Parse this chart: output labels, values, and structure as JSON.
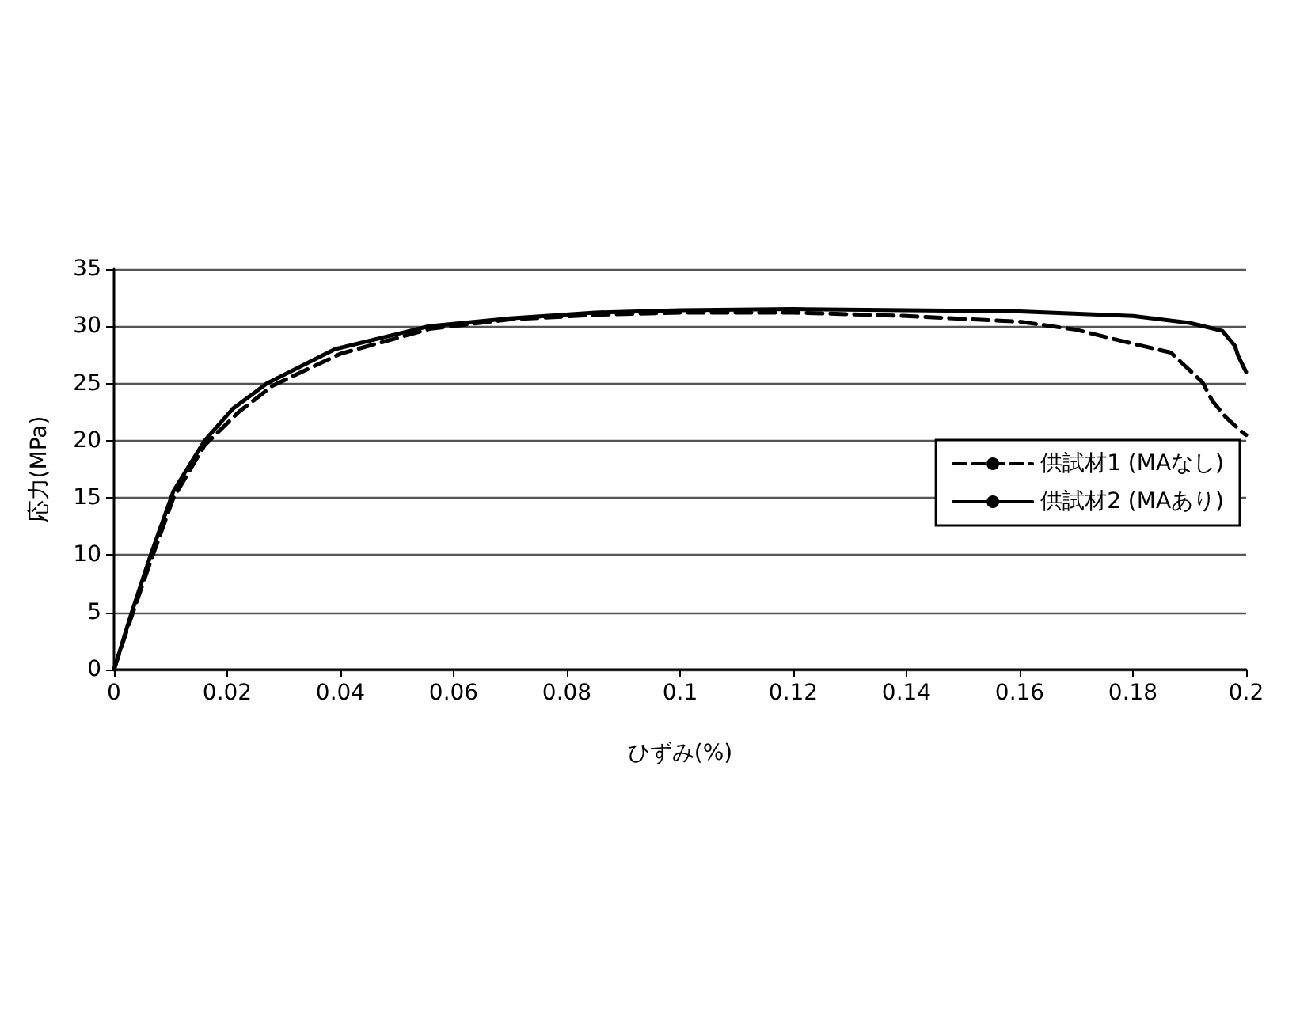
{
  "chart_data": {
    "type": "line",
    "xlabel": "ひずみ(%)",
    "ylabel": "応力(MPa)",
    "xlim": [
      0,
      0.2
    ],
    "xticks": [
      0,
      0.02,
      0.04,
      0.06,
      0.08,
      0.1,
      0.12,
      0.14,
      0.16,
      0.18,
      0.2
    ],
    "ylim": [
      0,
      35
    ],
    "yticks": [
      0,
      5,
      10,
      15,
      20,
      25,
      30,
      35
    ],
    "grid": "y",
    "legend": "right",
    "marker": "none",
    "series": [
      {
        "name": "供試材1 (MAなし)",
        "color": "#000000",
        "line_style": "dashed",
        "x": [
          0,
          0.003,
          0.0065,
          0.0105,
          0.016,
          0.022,
          0.028,
          0.04,
          0.056,
          0.07,
          0.085,
          0.1,
          0.12,
          0.14,
          0.16,
          0.17,
          0.1773,
          0.1867,
          0.1923,
          0.194,
          0.1965,
          0.1994,
          0.2
        ],
        "values": [
          0,
          4.5,
          9.5,
          15,
          19.6,
          22.5,
          24.8,
          27.6,
          29.8,
          30.6,
          31.0,
          31.2,
          31.2,
          30.9,
          30.4,
          29.7,
          28.8,
          27.7,
          25.1,
          23.5,
          22,
          20.7,
          20.5
        ]
      },
      {
        "name": "供試材2 (MAあり)",
        "color": "#000000",
        "line_style": "solid",
        "x": [
          0,
          0.003,
          0.0064,
          0.0105,
          0.016,
          0.021,
          0.027,
          0.039,
          0.0556,
          0.07,
          0.085,
          0.1,
          0.12,
          0.14,
          0.16,
          0.18,
          0.19,
          0.1958,
          0.198,
          0.1986,
          0.2
        ],
        "values": [
          0,
          4.8,
          9.9,
          15.6,
          20,
          22.8,
          25,
          28,
          30,
          30.7,
          31.2,
          31.4,
          31.5,
          31.4,
          31.3,
          30.9,
          30.3,
          29.6,
          28.3,
          27.4,
          26
        ]
      }
    ]
  }
}
